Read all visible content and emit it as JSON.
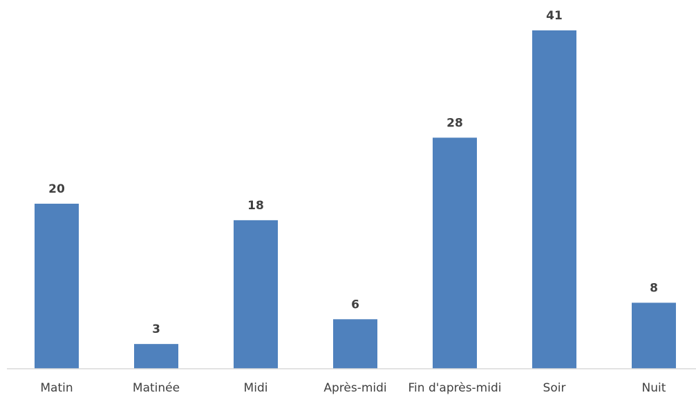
{
  "chart_data": {
    "type": "bar",
    "categories": [
      "Matin",
      "Matinée",
      "Midi",
      "Après-midi",
      "Fin d'après-midi",
      "Soir",
      "Nuit"
    ],
    "values": [
      20,
      3,
      18,
      6,
      28,
      41,
      8
    ],
    "title": "",
    "xlabel": "",
    "ylabel": "",
    "ylim": [
      0,
      41
    ],
    "grid": false,
    "legend": "none",
    "bar_color": "#4f81bd",
    "data_labels": true
  }
}
